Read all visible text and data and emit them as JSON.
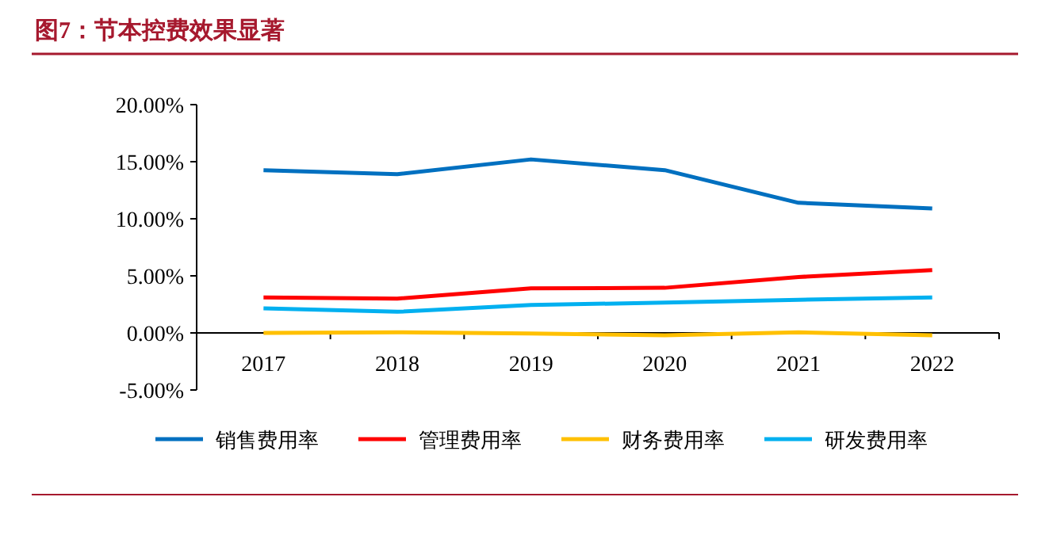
{
  "chart_data": {
    "type": "line",
    "title": "图7：节本控费效果显著",
    "categories": [
      "2017",
      "2018",
      "2019",
      "2020",
      "2021",
      "2022"
    ],
    "series": [
      {
        "name": "销售费用率",
        "color": "#0070c0",
        "values": [
          14.26,
          13.9,
          15.2,
          14.26,
          11.4,
          10.9
        ]
      },
      {
        "name": "管理费用率",
        "color": "#ff0000",
        "values": [
          3.1,
          3.0,
          3.9,
          3.95,
          4.9,
          5.5
        ]
      },
      {
        "name": "财务费用率",
        "color": "#ffc000",
        "values": [
          0.0,
          0.05,
          -0.05,
          -0.2,
          0.05,
          -0.2
        ]
      },
      {
        "name": "研发费用率",
        "color": "#00b0f0",
        "values": [
          2.15,
          1.85,
          2.45,
          2.65,
          2.9,
          3.1
        ]
      }
    ],
    "ylim": [
      -5,
      20
    ],
    "yticks": [
      {
        "value": -5,
        "label": "-5.00%"
      },
      {
        "value": 0,
        "label": "0.00%"
      },
      {
        "value": 5,
        "label": "5.00%"
      },
      {
        "value": 10,
        "label": "10.00%"
      },
      {
        "value": 15,
        "label": "15.00%"
      },
      {
        "value": 20,
        "label": "20.00%"
      }
    ],
    "legend": "bottom",
    "marker": "none",
    "line_style": "solid",
    "grid": false
  }
}
